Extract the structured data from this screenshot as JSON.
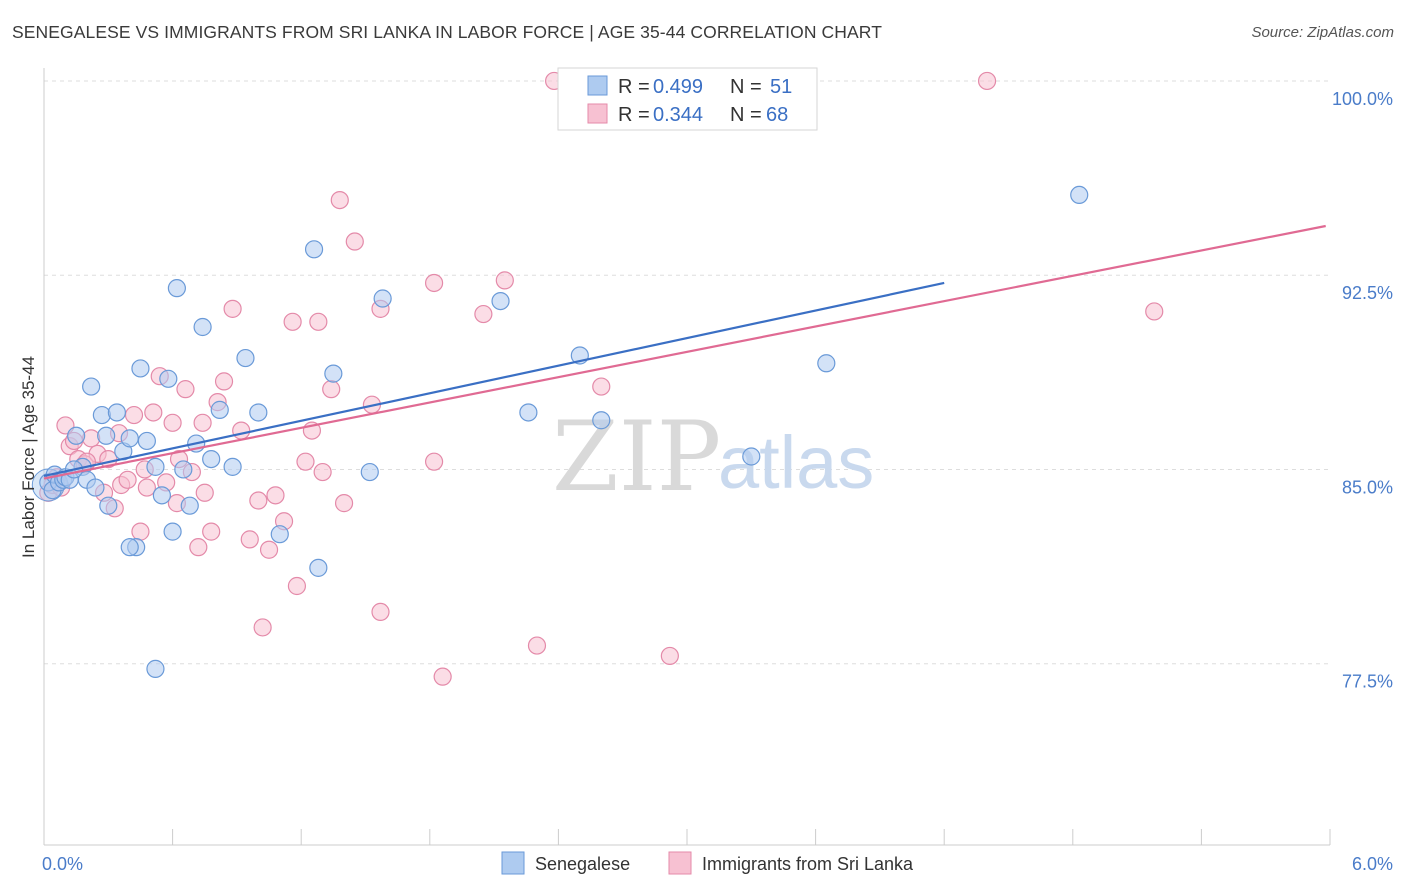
{
  "title": "SENEGALESE VS IMMIGRANTS FROM SRI LANKA IN LABOR FORCE | AGE 35-44 CORRELATION CHART",
  "source": "Source: ZipAtlas.com",
  "colors": {
    "series1_fill": "#aecbf0",
    "series1_stroke": "#6a9ad8",
    "series1_line": "#3a6fc4",
    "series2_fill": "#f7c1d2",
    "series2_stroke": "#e48aa9",
    "series2_line": "#e06a93",
    "tick_color": "#4a7cc9",
    "grid": "#dddddd"
  },
  "legend_top": {
    "rows": [
      {
        "r_label": "R =",
        "r_value": "0.499",
        "n_label": "N =",
        "n_value": "51"
      },
      {
        "r_label": "R =",
        "r_value": "0.344",
        "n_label": "N =",
        "n_value": "68"
      }
    ]
  },
  "watermark": {
    "zip": "ZIP",
    "atlas": "atlas"
  },
  "chart_data": {
    "type": "scatter",
    "title": "SENEGALESE VS IMMIGRANTS FROM SRI LANKA IN LABOR FORCE | AGE 35-44 CORRELATION CHART",
    "xlabel": "",
    "ylabel": "In Labor Force | Age 35-44",
    "xlim": [
      0.0,
      6.0
    ],
    "ylim": [
      70.5,
      100.5
    ],
    "x_tick_labels": [
      {
        "value": 0.0,
        "label": "0.0%"
      },
      {
        "value": 6.0,
        "label": "6.0%"
      }
    ],
    "y_tick_labels": [
      {
        "value": 100.0,
        "label": "100.0%"
      },
      {
        "value": 92.5,
        "label": "92.5%"
      },
      {
        "value": 85.0,
        "label": "85.0%"
      },
      {
        "value": 77.5,
        "label": "77.5%"
      }
    ],
    "series": [
      {
        "name": "Senegalese",
        "r": 0.499,
        "n": 51,
        "trend": {
          "x0": 0.0,
          "y0": 84.75,
          "x1": 4.2,
          "y1": 92.2
        },
        "points": [
          [
            0.02,
            84.5
          ],
          [
            0.04,
            84.2
          ],
          [
            0.05,
            84.8
          ],
          [
            0.07,
            84.5
          ],
          [
            0.09,
            84.6
          ],
          [
            0.1,
            84.7
          ],
          [
            0.12,
            84.6
          ],
          [
            0.15,
            86.3
          ],
          [
            0.18,
            85.1
          ],
          [
            0.2,
            84.6
          ],
          [
            0.24,
            84.3
          ],
          [
            0.27,
            87.1
          ],
          [
            0.29,
            86.3
          ],
          [
            0.34,
            87.2
          ],
          [
            0.37,
            85.7
          ],
          [
            0.4,
            86.2
          ],
          [
            0.43,
            82.0
          ],
          [
            0.45,
            88.9
          ],
          [
            0.48,
            86.1
          ],
          [
            0.52,
            85.1
          ],
          [
            0.55,
            84.0
          ],
          [
            0.58,
            88.5
          ],
          [
            0.6,
            82.6
          ],
          [
            0.62,
            92.0
          ],
          [
            0.65,
            85.0
          ],
          [
            0.68,
            83.6
          ],
          [
            0.71,
            86.0
          ],
          [
            0.74,
            90.5
          ],
          [
            0.78,
            85.4
          ],
          [
            0.82,
            87.3
          ],
          [
            0.88,
            85.1
          ],
          [
            0.94,
            89.3
          ],
          [
            1.0,
            87.2
          ],
          [
            1.1,
            82.5
          ],
          [
            1.26,
            93.5
          ],
          [
            1.28,
            81.2
          ],
          [
            1.35,
            88.7
          ],
          [
            1.52,
            84.9
          ],
          [
            1.58,
            91.6
          ],
          [
            2.13,
            91.5
          ],
          [
            2.26,
            87.2
          ],
          [
            2.5,
            89.4
          ],
          [
            2.6,
            86.9
          ],
          [
            3.3,
            85.5
          ],
          [
            3.65,
            89.1
          ],
          [
            4.83,
            95.6
          ],
          [
            0.52,
            77.3
          ],
          [
            0.4,
            82.0
          ],
          [
            0.3,
            83.6
          ],
          [
            0.22,
            88.2
          ],
          [
            0.14,
            85.0
          ]
        ]
      },
      {
        "name": "Immigrants from Sri Lanka",
        "r": 0.344,
        "n": 68,
        "trend": {
          "x0": 0.0,
          "y0": 84.65,
          "x1": 5.98,
          "y1": 94.4
        },
        "points": [
          [
            0.02,
            84.1
          ],
          [
            0.04,
            84.4
          ],
          [
            0.06,
            84.7
          ],
          [
            0.08,
            84.3
          ],
          [
            0.1,
            86.7
          ],
          [
            0.12,
            85.9
          ],
          [
            0.14,
            86.1
          ],
          [
            0.16,
            85.4
          ],
          [
            0.19,
            85.2
          ],
          [
            0.22,
            86.2
          ],
          [
            0.25,
            85.6
          ],
          [
            0.28,
            84.1
          ],
          [
            0.3,
            85.4
          ],
          [
            0.33,
            83.5
          ],
          [
            0.36,
            84.4
          ],
          [
            0.39,
            84.6
          ],
          [
            0.42,
            87.1
          ],
          [
            0.45,
            82.6
          ],
          [
            0.48,
            84.3
          ],
          [
            0.51,
            87.2
          ],
          [
            0.54,
            88.6
          ],
          [
            0.57,
            84.5
          ],
          [
            0.6,
            86.8
          ],
          [
            0.63,
            85.4
          ],
          [
            0.66,
            88.1
          ],
          [
            0.69,
            84.9
          ],
          [
            0.72,
            82.0
          ],
          [
            0.75,
            84.1
          ],
          [
            0.78,
            82.6
          ],
          [
            0.81,
            87.6
          ],
          [
            0.84,
            88.4
          ],
          [
            0.88,
            91.2
          ],
          [
            0.92,
            86.5
          ],
          [
            0.96,
            82.3
          ],
          [
            1.0,
            83.8
          ],
          [
            1.02,
            78.9
          ],
          [
            1.05,
            81.9
          ],
          [
            1.08,
            84.0
          ],
          [
            1.12,
            83.0
          ],
          [
            1.16,
            90.7
          ],
          [
            1.18,
            80.5
          ],
          [
            1.22,
            85.3
          ],
          [
            1.25,
            86.5
          ],
          [
            1.28,
            90.7
          ],
          [
            1.3,
            84.9
          ],
          [
            1.34,
            88.1
          ],
          [
            1.38,
            95.4
          ],
          [
            1.4,
            83.7
          ],
          [
            1.45,
            93.8
          ],
          [
            1.53,
            87.5
          ],
          [
            1.57,
            91.2
          ],
          [
            1.57,
            79.5
          ],
          [
            1.82,
            92.2
          ],
          [
            1.82,
            85.3
          ],
          [
            1.86,
            77.0
          ],
          [
            2.05,
            91.0
          ],
          [
            2.15,
            92.3
          ],
          [
            2.3,
            78.2
          ],
          [
            2.38,
            100.0
          ],
          [
            2.6,
            88.2
          ],
          [
            2.92,
            77.8
          ],
          [
            4.4,
            100.0
          ],
          [
            5.18,
            91.1
          ],
          [
            0.2,
            85.3
          ],
          [
            0.35,
            86.4
          ],
          [
            0.47,
            85.0
          ],
          [
            0.62,
            83.7
          ],
          [
            0.74,
            86.8
          ]
        ]
      }
    ]
  },
  "bottom_legend": [
    {
      "label": "Senegalese"
    },
    {
      "label": "Immigrants from Sri Lanka"
    }
  ]
}
